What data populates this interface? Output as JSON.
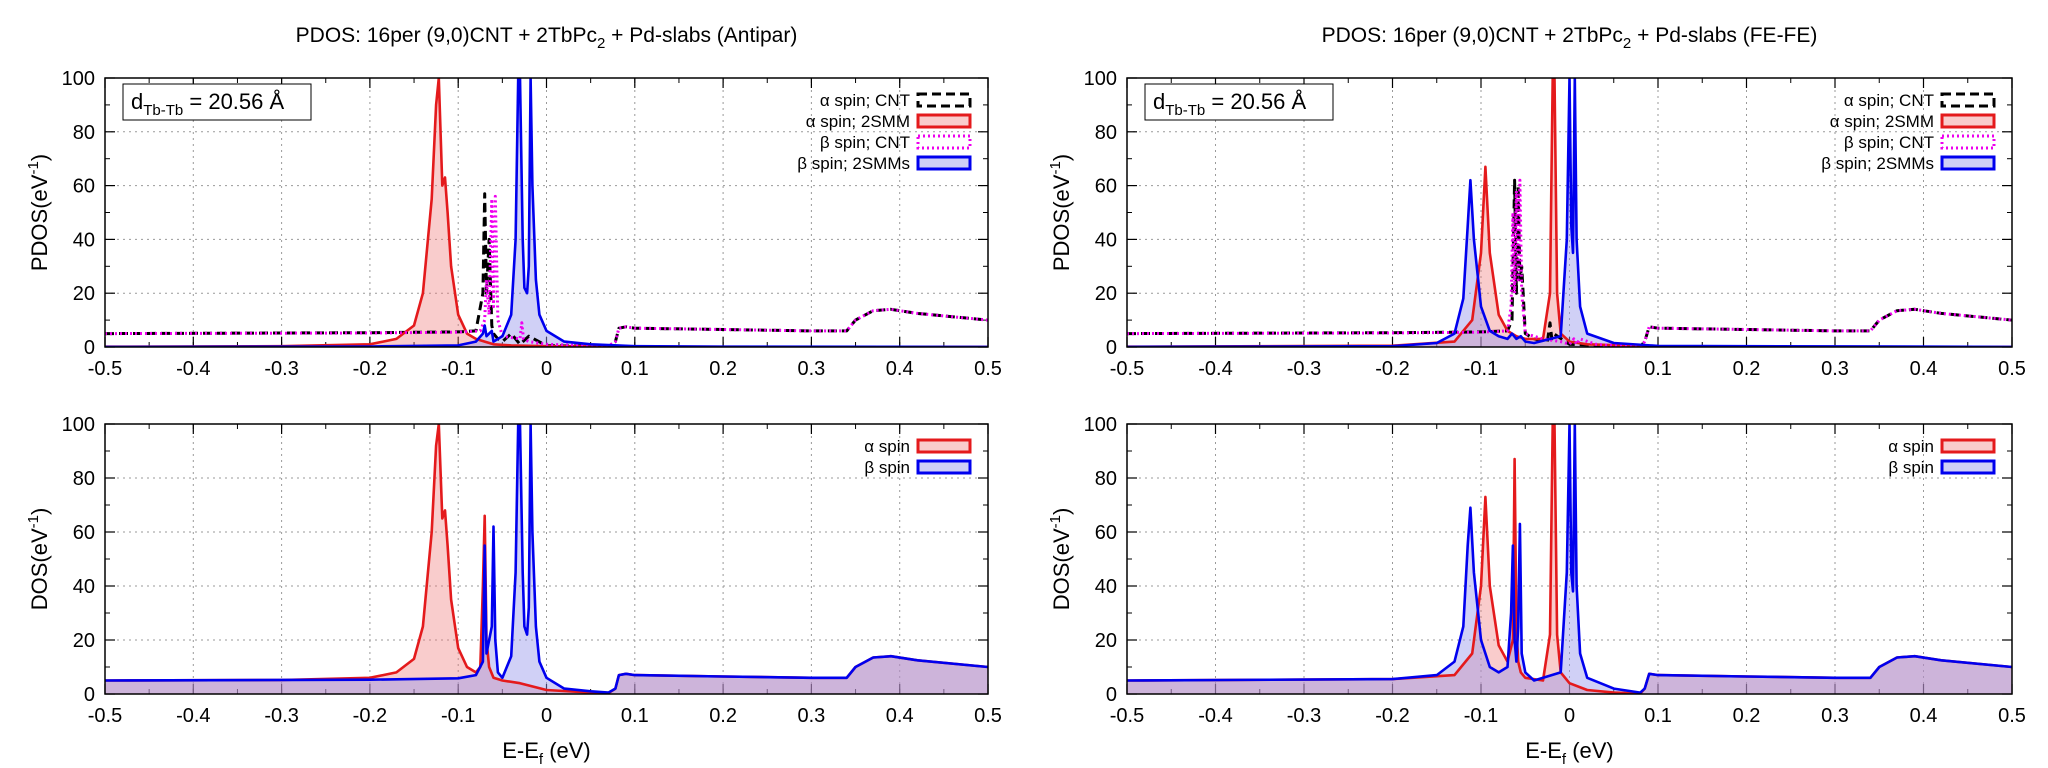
{
  "chart_data": [
    {
      "type": "area",
      "title": "PDOS: 16per (9,0)CNT + 2TbPc",
      "title_sub": "2",
      "title_tail": " + Pd-slabs (Antipar)",
      "annotation": {
        "base": "d",
        "sub": "Tb-Tb",
        "value": " = 20.56 Å"
      },
      "ylabel": "PDOS(eV",
      "ylabel_sup": "-1",
      "ylabel_tail": ")",
      "xlabel": "",
      "xlim": [
        -0.5,
        0.5
      ],
      "ylim": [
        0,
        100
      ],
      "xticks": [
        "-0.5",
        "-0.4",
        "-0.3",
        "-0.2",
        "-0.1",
        "0",
        "0.1",
        "0.2",
        "0.3",
        "0.4",
        "0.5"
      ],
      "yticks": [
        "0",
        "20",
        "40",
        "60",
        "80",
        "100"
      ],
      "grid": true,
      "legend_position": "top-right",
      "series": [
        {
          "name": "α spin; CNT",
          "color": "#000000",
          "style": "dashed",
          "fill": "none",
          "x": [
            -0.5,
            -0.2,
            -0.1,
            -0.08,
            -0.072,
            -0.07,
            -0.068,
            -0.065,
            -0.062,
            -0.06,
            -0.055,
            -0.05,
            -0.04,
            -0.03,
            -0.02,
            0,
            0.05,
            0.07,
            0.078,
            0.082,
            0.09,
            0.1,
            0.2,
            0.3,
            0.34,
            0.35,
            0.37,
            0.39,
            0.42,
            0.5
          ],
          "y": [
            5,
            5.3,
            5.6,
            6,
            20,
            57,
            20,
            40,
            8,
            5,
            3,
            2,
            5,
            1,
            4,
            0.5,
            0.3,
            0.2,
            2,
            7,
            7.5,
            7,
            6.5,
            6,
            6,
            10,
            13.5,
            14,
            12.5,
            10
          ]
        },
        {
          "name": "α spin; 2SMM",
          "color": "#e41a1c",
          "style": "solid",
          "fill": "rgba(240,120,120,0.38)",
          "x": [
            -0.5,
            -0.3,
            -0.2,
            -0.17,
            -0.15,
            -0.14,
            -0.13,
            -0.125,
            -0.122,
            -0.118,
            -0.115,
            -0.112,
            -0.108,
            -0.1,
            -0.09,
            -0.08,
            -0.07,
            -0.06,
            -0.04,
            0,
            0.1,
            0.5
          ],
          "y": [
            0.1,
            0.3,
            1,
            3,
            8,
            20,
            55,
            90,
            100,
            60,
            63,
            50,
            30,
            12,
            5,
            3,
            2,
            1,
            0.6,
            0.3,
            0.1,
            0.05
          ]
        },
        {
          "name": "β spin; CNT",
          "color": "#ee00ee",
          "style": "dotted",
          "fill": "none",
          "x": [
            -0.5,
            -0.2,
            -0.1,
            -0.075,
            -0.07,
            -0.068,
            -0.065,
            -0.062,
            -0.06,
            -0.058,
            -0.055,
            -0.05,
            -0.03,
            -0.028,
            -0.026,
            -0.02,
            0,
            0.05,
            0.07,
            0.078,
            0.082,
            0.09,
            0.1,
            0.2,
            0.3,
            0.34,
            0.35,
            0.37,
            0.39,
            0.42,
            0.5
          ],
          "y": [
            5,
            5.2,
            5.5,
            6,
            10,
            25,
            12,
            55,
            15,
            56,
            10,
            4,
            3,
            9,
            3,
            2,
            1,
            0.5,
            0.3,
            2,
            7,
            7.5,
            7,
            6.5,
            6,
            6,
            10,
            13.5,
            14,
            12.5,
            10
          ]
        },
        {
          "name": "β spin; 2SMMs",
          "color": "#0000ee",
          "style": "solid",
          "fill": "rgba(150,150,235,0.45)",
          "x": [
            -0.5,
            -0.2,
            -0.1,
            -0.08,
            -0.072,
            -0.07,
            -0.068,
            -0.062,
            -0.06,
            -0.05,
            -0.04,
            -0.035,
            -0.032,
            -0.03,
            -0.027,
            -0.025,
            -0.022,
            -0.02,
            -0.018,
            -0.016,
            -0.012,
            -0.008,
            0,
            0.02,
            0.05,
            0.1,
            0.2,
            0.5
          ],
          "y": [
            0.05,
            0.2,
            0.6,
            2,
            5,
            8,
            4,
            6,
            2,
            4,
            12,
            40,
            100,
            100,
            40,
            22,
            20,
            30,
            100,
            60,
            25,
            12,
            6,
            2,
            1,
            0.3,
            0.1,
            0.05
          ]
        }
      ]
    },
    {
      "type": "area",
      "title": "PDOS: 16per (9,0)CNT + 2TbPc",
      "title_sub": "2",
      "title_tail": " + Pd-slabs (FE-FE)",
      "annotation": {
        "base": "d",
        "sub": "Tb-Tb",
        "value": " = 20.56 Å"
      },
      "ylabel": "PDOS(eV",
      "ylabel_sup": "-1",
      "ylabel_tail": ")",
      "xlabel": "",
      "xlim": [
        -0.5,
        0.5
      ],
      "ylim": [
        0,
        100
      ],
      "xticks": [
        "-0.5",
        "-0.4",
        "-0.3",
        "-0.2",
        "-0.1",
        "0",
        "0.1",
        "0.2",
        "0.3",
        "0.4",
        "0.5"
      ],
      "yticks": [
        "0",
        "20",
        "40",
        "60",
        "80",
        "100"
      ],
      "grid": true,
      "legend_position": "top-right",
      "series": [
        {
          "name": "α spin; CNT",
          "color": "#000000",
          "style": "dashed",
          "fill": "none",
          "x": [
            -0.5,
            -0.2,
            -0.1,
            -0.07,
            -0.065,
            -0.062,
            -0.06,
            -0.058,
            -0.056,
            -0.054,
            -0.05,
            -0.04,
            -0.025,
            -0.022,
            -0.02,
            -0.018,
            0,
            0.06,
            0.08,
            0.085,
            0.09,
            0.1,
            0.2,
            0.3,
            0.34,
            0.35,
            0.37,
            0.39,
            0.42,
            0.5
          ],
          "y": [
            5,
            5.3,
            5.6,
            6,
            10,
            62,
            20,
            60,
            25,
            30,
            5,
            3,
            2,
            9,
            3,
            5,
            1,
            0.3,
            0.2,
            2,
            7.5,
            7,
            6.5,
            6,
            6,
            10,
            13.5,
            14,
            12.5,
            10
          ]
        },
        {
          "name": "α spin; 2SMM",
          "color": "#e41a1c",
          "style": "solid",
          "fill": "rgba(240,120,120,0.38)",
          "x": [
            -0.5,
            -0.2,
            -0.13,
            -0.11,
            -0.1,
            -0.095,
            -0.09,
            -0.08,
            -0.07,
            -0.06,
            -0.05,
            -0.03,
            -0.022,
            -0.019,
            -0.017,
            -0.014,
            -0.01,
            0,
            0.02,
            0.1,
            0.5
          ],
          "y": [
            0.1,
            0.5,
            2,
            10,
            35,
            67,
            35,
            12,
            6,
            4,
            3,
            3,
            20,
            100,
            100,
            20,
            5,
            2,
            1,
            0.2,
            0.05
          ]
        },
        {
          "name": "β spin; CNT",
          "color": "#ee00ee",
          "style": "dotted",
          "fill": "none",
          "x": [
            -0.5,
            -0.2,
            -0.1,
            -0.07,
            -0.066,
            -0.064,
            -0.062,
            -0.06,
            -0.058,
            -0.056,
            -0.054,
            -0.05,
            -0.03,
            -0.01,
            0,
            0.005,
            0.008,
            0.012,
            0.03,
            0.06,
            0.08,
            0.085,
            0.09,
            0.1,
            0.2,
            0.3,
            0.34,
            0.35,
            0.37,
            0.39,
            0.42,
            0.5
          ],
          "y": [
            5,
            5.2,
            5.5,
            6,
            15,
            50,
            20,
            58,
            25,
            62,
            20,
            5,
            3,
            2,
            1,
            3,
            1,
            3,
            1,
            0.3,
            0.2,
            2,
            7.5,
            7,
            6.5,
            6,
            6,
            10,
            13.5,
            14,
            12.5,
            10
          ]
        },
        {
          "name": "β spin; 2SMMs",
          "color": "#0000ee",
          "style": "solid",
          "fill": "rgba(150,150,235,0.45)",
          "x": [
            -0.5,
            -0.2,
            -0.15,
            -0.13,
            -0.12,
            -0.115,
            -0.112,
            -0.108,
            -0.1,
            -0.09,
            -0.08,
            -0.07,
            -0.065,
            -0.06,
            -0.055,
            -0.05,
            -0.04,
            -0.01,
            -0.003,
            0,
            0.002,
            0.004,
            0.006,
            0.008,
            0.012,
            0.02,
            0.05,
            0.1,
            0.5
          ],
          "y": [
            0.05,
            0.3,
            1.5,
            5,
            18,
            45,
            62,
            40,
            15,
            6,
            4,
            3,
            5,
            3,
            4,
            2,
            1.5,
            4,
            40,
            100,
            45,
            35,
            100,
            40,
            15,
            5,
            1.5,
            0.4,
            0.05
          ]
        }
      ]
    },
    {
      "type": "area",
      "title": "",
      "ylabel": "DOS(eV",
      "ylabel_sup": "-1",
      "ylabel_tail": ")",
      "xlabel": "E-E",
      "xlabel_sub": "f",
      "xlabel_tail": " (eV)",
      "xlim": [
        -0.5,
        0.5
      ],
      "ylim": [
        0,
        100
      ],
      "xticks": [
        "-0.5",
        "-0.4",
        "-0.3",
        "-0.2",
        "-0.1",
        "0",
        "0.1",
        "0.2",
        "0.3",
        "0.4",
        "0.5"
      ],
      "yticks": [
        "0",
        "20",
        "40",
        "60",
        "80",
        "100"
      ],
      "grid": true,
      "legend_position": "top-right",
      "series": [
        {
          "name": "α spin",
          "color": "#e41a1c",
          "style": "solid",
          "fill": "rgba(240,120,120,0.38)",
          "x": [
            -0.5,
            -0.3,
            -0.2,
            -0.17,
            -0.15,
            -0.14,
            -0.13,
            -0.125,
            -0.122,
            -0.118,
            -0.115,
            -0.112,
            -0.108,
            -0.1,
            -0.09,
            -0.08,
            -0.075,
            -0.072,
            -0.07,
            -0.068,
            -0.065,
            -0.06,
            -0.05,
            -0.03,
            0,
            0.05,
            0.07,
            0.078,
            0.082,
            0.09,
            0.1,
            0.2,
            0.3,
            0.34,
            0.35,
            0.37,
            0.39,
            0.42,
            0.5
          ],
          "y": [
            5,
            5.2,
            6,
            8,
            13,
            25,
            60,
            92,
            100,
            65,
            68,
            55,
            35,
            17,
            10,
            8,
            10,
            40,
            66,
            20,
            10,
            6,
            5,
            4,
            1.5,
            0.5,
            0.3,
            2,
            7,
            7.5,
            7,
            6.5,
            6,
            6,
            10,
            13.5,
            14,
            12.5,
            10
          ]
        },
        {
          "name": "β spin",
          "color": "#0000ee",
          "style": "solid",
          "fill": "rgba(150,150,235,0.45)",
          "x": [
            -0.5,
            -0.2,
            -0.1,
            -0.08,
            -0.072,
            -0.07,
            -0.068,
            -0.062,
            -0.06,
            -0.058,
            -0.055,
            -0.05,
            -0.04,
            -0.035,
            -0.032,
            -0.03,
            -0.027,
            -0.025,
            -0.022,
            -0.02,
            -0.018,
            -0.016,
            -0.012,
            -0.008,
            0,
            0.02,
            0.05,
            0.07,
            0.078,
            0.082,
            0.09,
            0.1,
            0.2,
            0.3,
            0.34,
            0.35,
            0.37,
            0.39,
            0.42,
            0.5
          ],
          "y": [
            5,
            5.3,
            5.8,
            7,
            12,
            55,
            15,
            25,
            62,
            20,
            8,
            6,
            14,
            45,
            100,
            100,
            45,
            25,
            22,
            32,
            100,
            60,
            25,
            12,
            6,
            2,
            1,
            0.5,
            2,
            7,
            7.5,
            7,
            6.5,
            6,
            6,
            10,
            13.5,
            14,
            12.5,
            10
          ]
        }
      ]
    },
    {
      "type": "area",
      "title": "",
      "ylabel": "DOS(eV",
      "ylabel_sup": "-1",
      "ylabel_tail": ")",
      "xlabel": "E-E",
      "xlabel_sub": "f",
      "xlabel_tail": " (eV)",
      "xlim": [
        -0.5,
        0.5
      ],
      "ylim": [
        0,
        100
      ],
      "xticks": [
        "-0.5",
        "-0.4",
        "-0.3",
        "-0.2",
        "-0.1",
        "0",
        "0.1",
        "0.2",
        "0.3",
        "0.4",
        "0.5"
      ],
      "yticks": [
        "0",
        "20",
        "40",
        "60",
        "80",
        "100"
      ],
      "grid": true,
      "legend_position": "top-right",
      "series": [
        {
          "name": "α spin",
          "color": "#e41a1c",
          "style": "solid",
          "fill": "rgba(240,120,120,0.38)",
          "x": [
            -0.5,
            -0.2,
            -0.13,
            -0.11,
            -0.1,
            -0.095,
            -0.09,
            -0.08,
            -0.07,
            -0.064,
            -0.062,
            -0.06,
            -0.058,
            -0.055,
            -0.05,
            -0.03,
            -0.022,
            -0.019,
            -0.017,
            -0.014,
            -0.01,
            0,
            0.02,
            0.05,
            0.08,
            0.085,
            0.09,
            0.1,
            0.2,
            0.3,
            0.34,
            0.35,
            0.37,
            0.39,
            0.42,
            0.5
          ],
          "y": [
            5,
            5.5,
            7,
            15,
            40,
            73,
            40,
            18,
            12,
            20,
            87,
            25,
            12,
            8,
            6,
            5,
            22,
            100,
            100,
            22,
            8,
            4,
            1.5,
            0.5,
            0.2,
            2,
            7.5,
            7,
            6.5,
            6,
            6,
            10,
            13.5,
            14,
            12.5,
            10
          ]
        },
        {
          "name": "β spin",
          "color": "#0000ee",
          "style": "solid",
          "fill": "rgba(150,150,235,0.45)",
          "x": [
            -0.5,
            -0.2,
            -0.15,
            -0.13,
            -0.12,
            -0.115,
            -0.112,
            -0.108,
            -0.1,
            -0.09,
            -0.08,
            -0.07,
            -0.066,
            -0.064,
            -0.062,
            -0.06,
            -0.058,
            -0.056,
            -0.054,
            -0.05,
            -0.04,
            -0.01,
            -0.003,
            0,
            0.002,
            0.004,
            0.006,
            0.008,
            0.012,
            0.02,
            0.05,
            0.08,
            0.085,
            0.09,
            0.1,
            0.2,
            0.3,
            0.34,
            0.35,
            0.37,
            0.39,
            0.42,
            0.5
          ],
          "y": [
            5,
            5.5,
            7,
            12,
            25,
            55,
            69,
            45,
            20,
            10,
            8,
            10,
            30,
            55,
            20,
            12,
            25,
            63,
            15,
            8,
            5,
            8,
            45,
            100,
            45,
            38,
            100,
            40,
            15,
            6,
            2,
            0.5,
            2,
            7.5,
            7,
            6.5,
            6,
            6,
            10,
            13.5,
            14,
            12.5,
            10
          ]
        }
      ]
    }
  ]
}
